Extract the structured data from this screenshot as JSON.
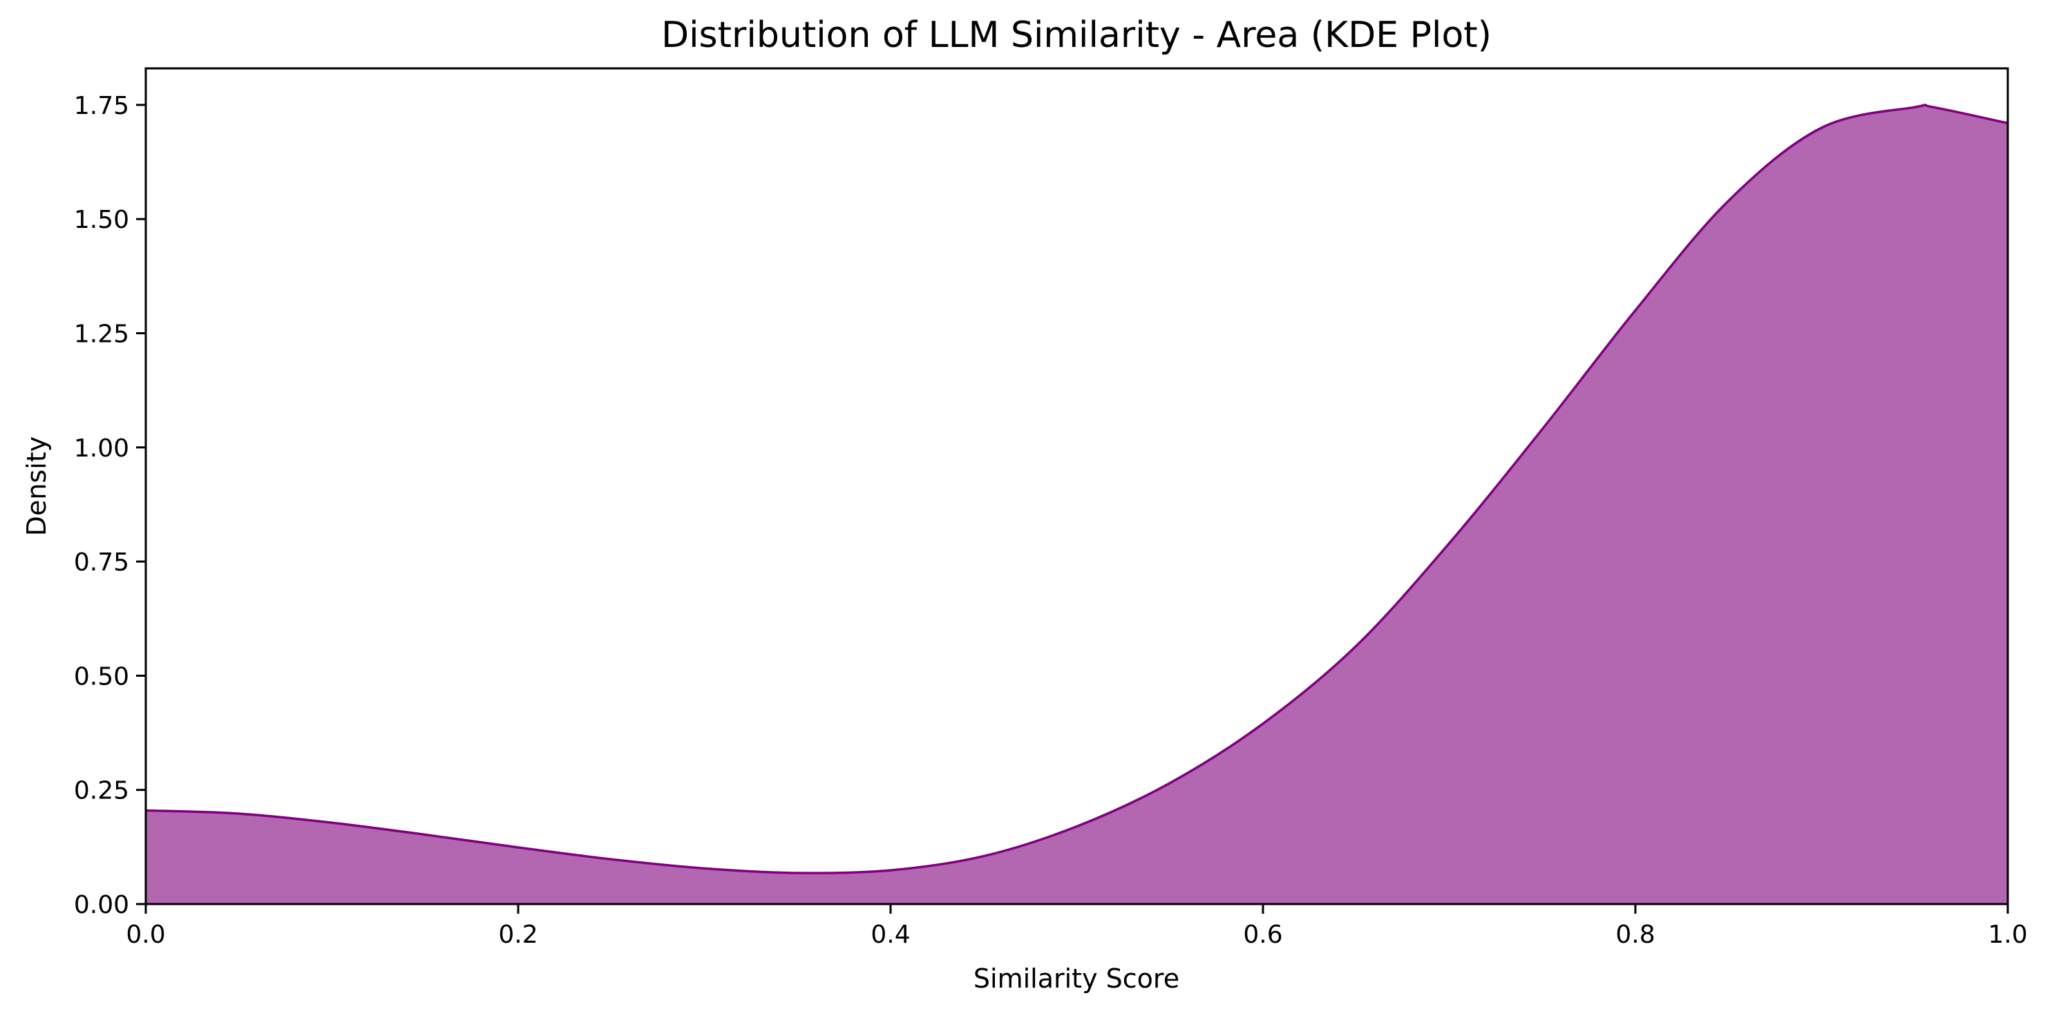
{
  "chart_data": {
    "type": "area",
    "title": "Distribution of LLM Similarity - Area (KDE Plot)",
    "xlabel": "Similarity Score",
    "ylabel": "Density",
    "xlim": [
      0.0,
      1.0
    ],
    "ylim": [
      0.0,
      1.83
    ],
    "xticks": [
      0.0,
      0.2,
      0.4,
      0.6,
      0.8,
      1.0
    ],
    "xtick_labels": [
      "0.0",
      "0.2",
      "0.4",
      "0.6",
      "0.8",
      "1.0"
    ],
    "yticks": [
      0.0,
      0.25,
      0.5,
      0.75,
      1.0,
      1.25,
      1.5,
      1.75
    ],
    "ytick_labels": [
      "0.00",
      "0.25",
      "0.50",
      "0.75",
      "1.00",
      "1.25",
      "1.50",
      "1.75"
    ],
    "grid": false,
    "legend": "none",
    "fill_color": "#b267b0",
    "line_color": "#800080",
    "series": [
      {
        "x": [
          0.0,
          0.05,
          0.1,
          0.15,
          0.2,
          0.25,
          0.3,
          0.35,
          0.4,
          0.45,
          0.5,
          0.55,
          0.6,
          0.65,
          0.7,
          0.75,
          0.8,
          0.85,
          0.9,
          0.95,
          0.96,
          1.0
        ],
        "values": [
          0.205,
          0.198,
          0.178,
          0.152,
          0.124,
          0.098,
          0.078,
          0.068,
          0.074,
          0.105,
          0.17,
          0.265,
          0.395,
          0.565,
          0.79,
          1.04,
          1.3,
          1.54,
          1.7,
          1.745,
          1.745,
          1.71
        ]
      }
    ]
  }
}
